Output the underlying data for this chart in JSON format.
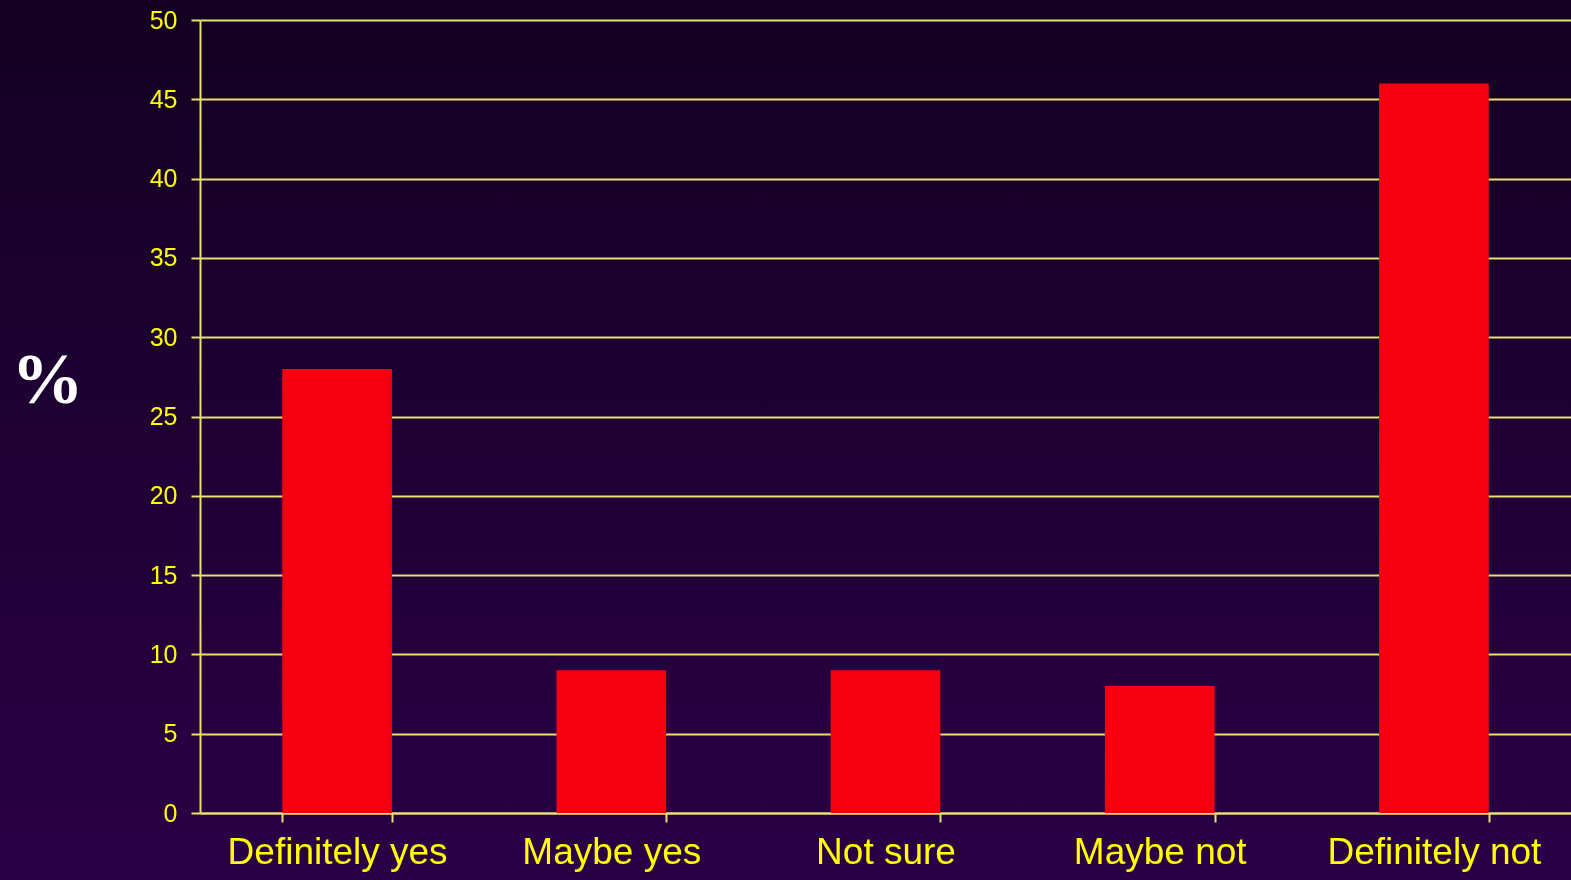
{
  "chart_data": {
    "type": "bar",
    "ylabel": "%",
    "categories": [
      "Definitely yes",
      "Maybe yes",
      "Not sure",
      "Maybe not",
      "Definitely not"
    ],
    "values": [
      28,
      9,
      9,
      8,
      46
    ],
    "color": "#f50010",
    "ylim": [
      0,
      50
    ],
    "yticks": [
      0,
      5,
      10,
      15,
      20,
      25,
      30,
      35,
      40,
      45,
      50
    ],
    "grid": "y"
  }
}
